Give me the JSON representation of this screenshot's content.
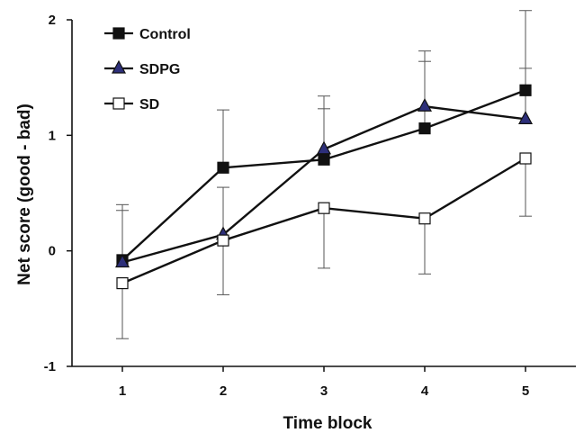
{
  "chart_data": {
    "type": "line",
    "title": "",
    "xlabel": "Time block",
    "ylabel": "Net score (good - bad)",
    "x": [
      1,
      2,
      3,
      4,
      5
    ],
    "xlim": [
      0.5,
      5.5
    ],
    "ylim": [
      -1,
      2
    ],
    "x_ticks": [
      "1",
      "2",
      "3",
      "4",
      "5"
    ],
    "y_ticks": [
      "-1",
      "0",
      "1",
      "2"
    ],
    "grid": false,
    "legend_position": "top-left",
    "series": [
      {
        "name": "Control",
        "marker": "square-filled",
        "color": "#111111",
        "marker_fill": "#111111",
        "values": [
          -0.08,
          0.72,
          0.79,
          1.06,
          1.39
        ],
        "error_upper": [
          0.4,
          1.22,
          1.23,
          1.73,
          2.08
        ],
        "error_lower": [
          null,
          null,
          null,
          null,
          null
        ]
      },
      {
        "name": "SDPG",
        "marker": "triangle-filled",
        "color": "#111111",
        "marker_fill": "#2d2f7a",
        "values": [
          -0.1,
          0.14,
          0.88,
          1.25,
          1.14
        ],
        "error_upper": [
          0.35,
          0.55,
          1.34,
          1.64,
          1.58
        ],
        "error_lower": [
          null,
          null,
          null,
          null,
          null
        ]
      },
      {
        "name": "SD",
        "marker": "square-open",
        "color": "#111111",
        "marker_fill": "#ffffff",
        "values": [
          -0.28,
          0.09,
          0.37,
          0.28,
          0.8
        ],
        "error_upper": [
          null,
          null,
          null,
          null,
          null
        ],
        "error_lower": [
          -0.76,
          -0.38,
          -0.15,
          -0.2,
          0.3
        ]
      }
    ]
  }
}
